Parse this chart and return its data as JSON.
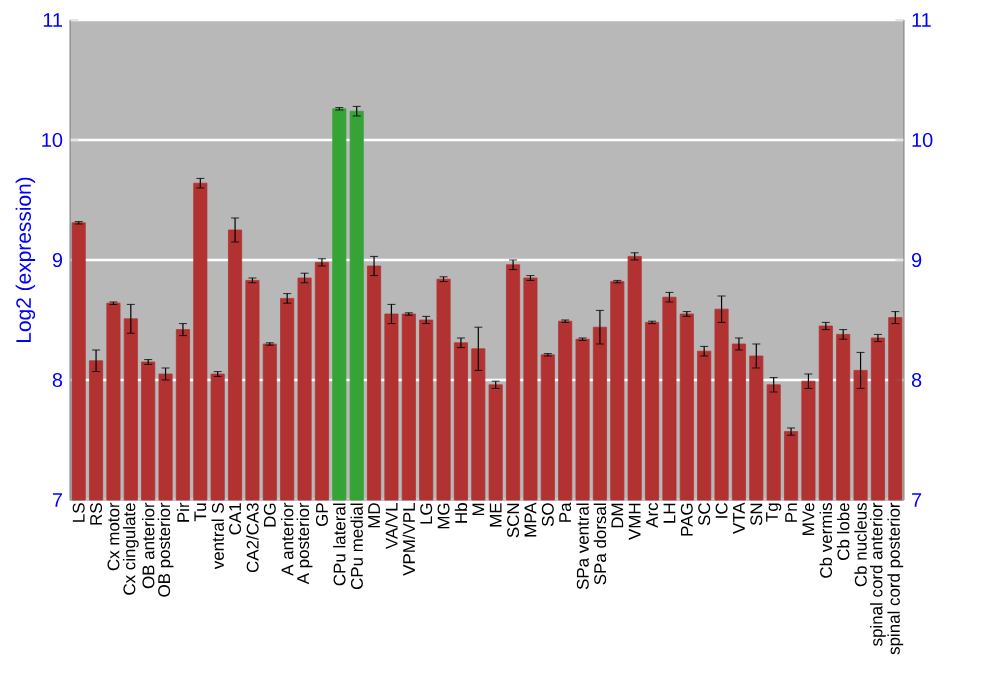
{
  "chart_data": {
    "type": "bar",
    "ylabel": "Log2 (expression)",
    "categories": [
      "LS",
      "RS",
      "Cx motor",
      "Cx cingulate",
      "OB anterior",
      "OB posterior",
      "Pir",
      "Tu",
      "ventral S",
      "CA1",
      "CA2/CA3",
      "DG",
      "A anterior",
      "A posterior",
      "GP",
      "CPu lateral",
      "CPu medial",
      "MD",
      "VA/VL",
      "VPM/VPL",
      "LG",
      "MG",
      "Hb",
      "M",
      "ME",
      "SCN",
      "MPA",
      "SO",
      "Pa",
      "SPa ventral",
      "SPa dorsal",
      "DM",
      "VMH",
      "Arc",
      "LH",
      "PAG",
      "SC",
      "IC",
      "VTA",
      "SN",
      "Tg",
      "Pn",
      "MVe",
      "Cb vermis",
      "Cb lobe",
      "Cb nucleus",
      "spinal cord anterior",
      "spinal cord posterior"
    ],
    "values": [
      9.31,
      8.16,
      8.64,
      8.51,
      8.15,
      8.05,
      8.42,
      9.64,
      8.05,
      9.25,
      8.83,
      8.3,
      8.68,
      8.85,
      8.98,
      10.26,
      10.24,
      8.95,
      8.55,
      8.55,
      8.5,
      8.84,
      8.31,
      8.26,
      7.96,
      8.96,
      8.85,
      8.21,
      8.49,
      8.34,
      8.44,
      8.82,
      9.03,
      8.48,
      8.69,
      8.55,
      8.24,
      8.59,
      8.3,
      8.2,
      7.96,
      7.57,
      7.99,
      8.45,
      8.38,
      8.08,
      8.35,
      8.52
    ],
    "errors": [
      0.01,
      0.09,
      0.01,
      0.12,
      0.02,
      0.05,
      0.05,
      0.04,
      0.02,
      0.1,
      0.02,
      0.01,
      0.04,
      0.04,
      0.03,
      0.01,
      0.04,
      0.08,
      0.08,
      0.01,
      0.03,
      0.02,
      0.04,
      0.18,
      0.03,
      0.04,
      0.02,
      0.01,
      0.01,
      0.01,
      0.14,
      0.01,
      0.03,
      0.01,
      0.04,
      0.02,
      0.04,
      0.11,
      0.05,
      0.1,
      0.06,
      0.03,
      0.06,
      0.03,
      0.04,
      0.15,
      0.03,
      0.05
    ],
    "colors": [
      "#b23232",
      "#b23232",
      "#b23232",
      "#b23232",
      "#b23232",
      "#b23232",
      "#b23232",
      "#b23232",
      "#b23232",
      "#b23232",
      "#b23232",
      "#b23232",
      "#b23232",
      "#b23232",
      "#b23232",
      "#36a336",
      "#36a336",
      "#b23232",
      "#b23232",
      "#b23232",
      "#b23232",
      "#b23232",
      "#b23232",
      "#b23232",
      "#b23232",
      "#b23232",
      "#b23232",
      "#b23232",
      "#b23232",
      "#b23232",
      "#b23232",
      "#b23232",
      "#b23232",
      "#b23232",
      "#b23232",
      "#b23232",
      "#b23232",
      "#b23232",
      "#b23232",
      "#b23232",
      "#b23232",
      "#b23232",
      "#b23232",
      "#b23232",
      "#b23232",
      "#b23232",
      "#b23232",
      "#b23232"
    ],
    "ylim": [
      7,
      11
    ],
    "yticks": [
      7,
      8,
      9,
      10,
      11
    ],
    "y2lim": [
      7,
      11
    ],
    "y2ticks": [
      7,
      8,
      9,
      10,
      11
    ],
    "grid": "y"
  }
}
